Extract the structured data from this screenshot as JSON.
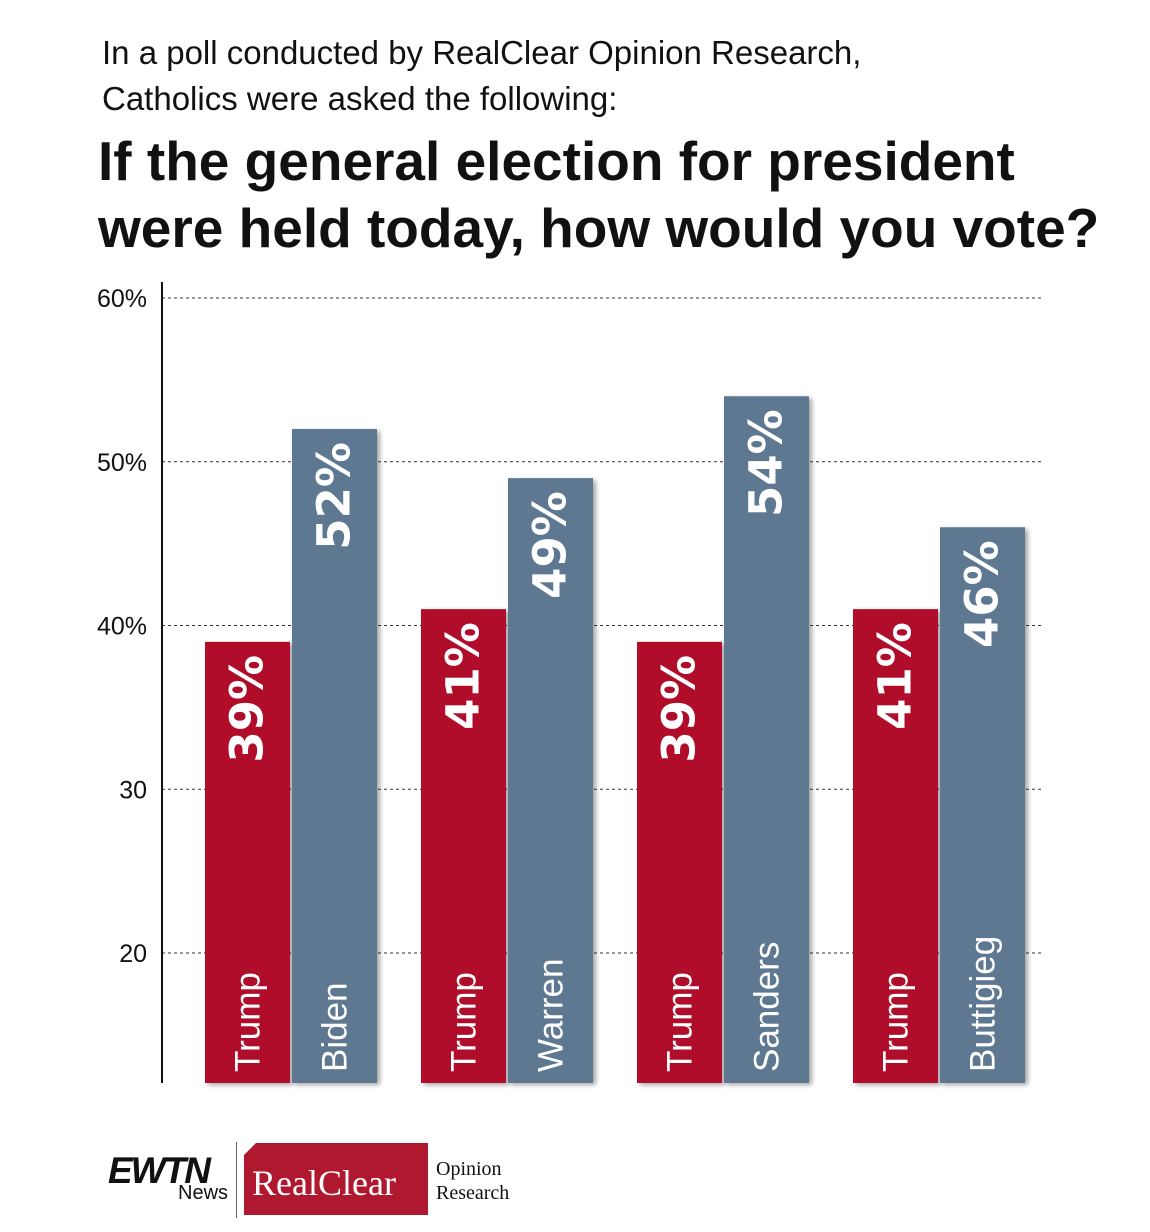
{
  "intro": {
    "line1": "In a poll conducted by RealClear Opinion Research,",
    "line2": "Catholics were asked the following:"
  },
  "question": {
    "line1": "If the general election for president",
    "line2": "were held today, how would you vote?"
  },
  "chart_data": {
    "type": "bar",
    "title": "If the general election for president were held today, how would you vote?",
    "groups": [
      "Trump vs Biden",
      "Trump vs Warren",
      "Trump vs Sanders",
      "Trump vs Buttigieg"
    ],
    "bars": [
      {
        "group": 0,
        "label": "Trump",
        "value": 39,
        "value_label": "39%",
        "color": "#b0102b"
      },
      {
        "group": 0,
        "label": "Biden",
        "value": 52,
        "value_label": "52%",
        "color": "#5d7890"
      },
      {
        "group": 1,
        "label": "Trump",
        "value": 41,
        "value_label": "41%",
        "color": "#b0102b"
      },
      {
        "group": 1,
        "label": "Warren",
        "value": 49,
        "value_label": "49%",
        "color": "#5d7890"
      },
      {
        "group": 2,
        "label": "Trump",
        "value": 39,
        "value_label": "39%",
        "color": "#b0102b"
      },
      {
        "group": 2,
        "label": "Sanders",
        "value": 54,
        "value_label": "54%",
        "color": "#5d7890"
      },
      {
        "group": 3,
        "label": "Trump",
        "value": 41,
        "value_label": "41%",
        "color": "#b0102b"
      },
      {
        "group": 3,
        "label": "Buttigieg",
        "value": 46,
        "value_label": "46%",
        "color": "#5d7890"
      }
    ],
    "yticks": [
      {
        "value": 20,
        "label": "20"
      },
      {
        "value": 30,
        "label": "30"
      },
      {
        "value": 40,
        "label": "40%"
      },
      {
        "value": 50,
        "label": "50%"
      },
      {
        "value": 60,
        "label": "60%"
      }
    ],
    "ylim": [
      14,
      60
    ],
    "grid": "dashed horizontal",
    "colors": {
      "republican": "#b0102b",
      "democrat": "#5d7890"
    }
  },
  "footer": {
    "ewtn": "EWTN",
    "news": "News",
    "realclear": "RealClear",
    "opinion": "Opinion",
    "research": "Research"
  }
}
